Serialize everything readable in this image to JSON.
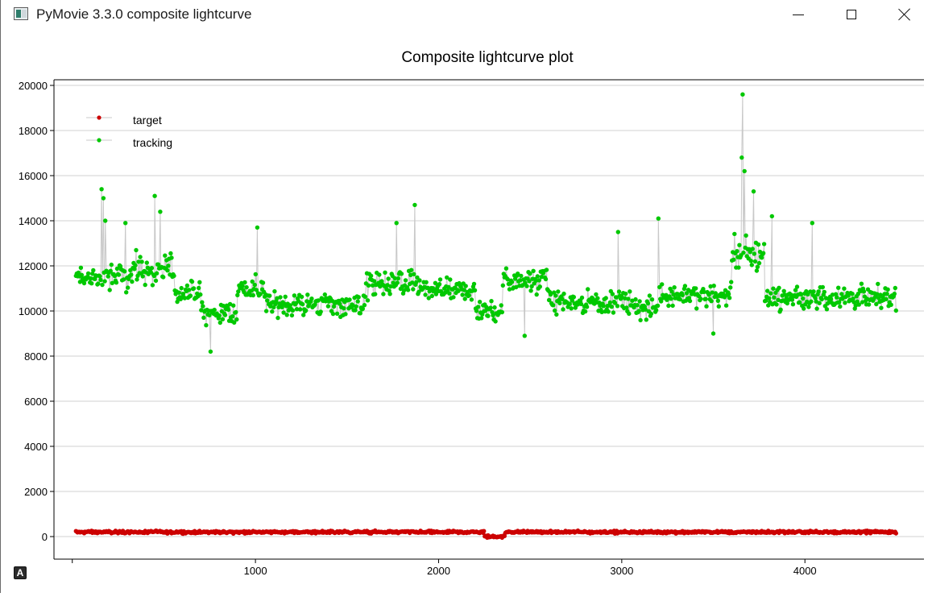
{
  "window": {
    "title": "PyMovie 3.3.0 composite lightcurve",
    "icon": "pymovie-app-icon",
    "controls": {
      "minimize": "minimize-icon",
      "maximize": "maximize-icon",
      "close": "close-icon"
    }
  },
  "auto_range_button": {
    "label": "A"
  },
  "colors": {
    "target": "#cc0000",
    "tracking": "#00c800",
    "connector": "#c8c8c8",
    "grid": "#d0d0d0",
    "axis": "#000000"
  },
  "chart_data": {
    "type": "scatter",
    "title": "Composite lightcurve plot",
    "xlabel": "",
    "ylabel": "",
    "xlim": [
      -100,
      4650
    ],
    "ylim": [
      -1000,
      20250
    ],
    "x_ticks": [
      0,
      1000,
      2000,
      3000,
      4000
    ],
    "x_tick_labels": [
      "",
      "1000",
      "2000",
      "3000",
      "4000"
    ],
    "y_ticks": [
      0,
      2000,
      4000,
      6000,
      8000,
      10000,
      12000,
      14000,
      16000,
      18000,
      20000
    ],
    "y_tick_labels": [
      "0",
      "2000",
      "4000",
      "6000",
      "8000",
      "10000",
      "12000",
      "14000",
      "16000",
      "18000",
      "20000"
    ],
    "grid": "horizontal",
    "legend_position": "top-left",
    "x_range": [
      20,
      4500
    ],
    "series": [
      {
        "name": "target",
        "key": "target",
        "baseline": 200,
        "scatter": 130,
        "features": [
          {
            "x_from": 2250,
            "x_to": 2360,
            "level": 0
          }
        ]
      },
      {
        "name": "tracking",
        "key": "tracking",
        "segments": [
          {
            "x_from": 20,
            "x_to": 300,
            "level": 11500,
            "spread": 900
          },
          {
            "x_from": 300,
            "x_to": 560,
            "level": 11800,
            "spread": 1000
          },
          {
            "x_from": 560,
            "x_to": 700,
            "level": 10800,
            "spread": 700
          },
          {
            "x_from": 700,
            "x_to": 900,
            "level": 9900,
            "spread": 700
          },
          {
            "x_from": 900,
            "x_to": 1050,
            "level": 11000,
            "spread": 800
          },
          {
            "x_from": 1050,
            "x_to": 1600,
            "level": 10300,
            "spread": 700
          },
          {
            "x_from": 1600,
            "x_to": 1900,
            "level": 11200,
            "spread": 900
          },
          {
            "x_from": 1900,
            "x_to": 2200,
            "level": 10900,
            "spread": 700
          },
          {
            "x_from": 2200,
            "x_to": 2350,
            "level": 10000,
            "spread": 700
          },
          {
            "x_from": 2350,
            "x_to": 2600,
            "level": 11400,
            "spread": 800
          },
          {
            "x_from": 2600,
            "x_to": 3050,
            "level": 10400,
            "spread": 700
          },
          {
            "x_from": 3050,
            "x_to": 3200,
            "level": 10100,
            "spread": 700
          },
          {
            "x_from": 3200,
            "x_to": 3600,
            "level": 10700,
            "spread": 700
          },
          {
            "x_from": 3600,
            "x_to": 3780,
            "level": 12500,
            "spread": 1200
          },
          {
            "x_from": 3780,
            "x_to": 4500,
            "level": 10600,
            "spread": 750
          }
        ],
        "spikes": [
          {
            "x": 160,
            "y": 15400
          },
          {
            "x": 170,
            "y": 15000
          },
          {
            "x": 180,
            "y": 14000
          },
          {
            "x": 450,
            "y": 15100
          },
          {
            "x": 480,
            "y": 14400
          },
          {
            "x": 290,
            "y": 13900
          },
          {
            "x": 1010,
            "y": 13700
          },
          {
            "x": 1770,
            "y": 13900
          },
          {
            "x": 1870,
            "y": 14700
          },
          {
            "x": 2980,
            "y": 13500
          },
          {
            "x": 3200,
            "y": 14100
          },
          {
            "x": 3660,
            "y": 19600
          },
          {
            "x": 3655,
            "y": 16800
          },
          {
            "x": 3670,
            "y": 16200
          },
          {
            "x": 3720,
            "y": 15300
          },
          {
            "x": 3820,
            "y": 14200
          },
          {
            "x": 4040,
            "y": 13900
          },
          {
            "x": 755,
            "y": 8200
          },
          {
            "x": 2470,
            "y": 8900
          },
          {
            "x": 3500,
            "y": 9000
          }
        ]
      }
    ]
  }
}
